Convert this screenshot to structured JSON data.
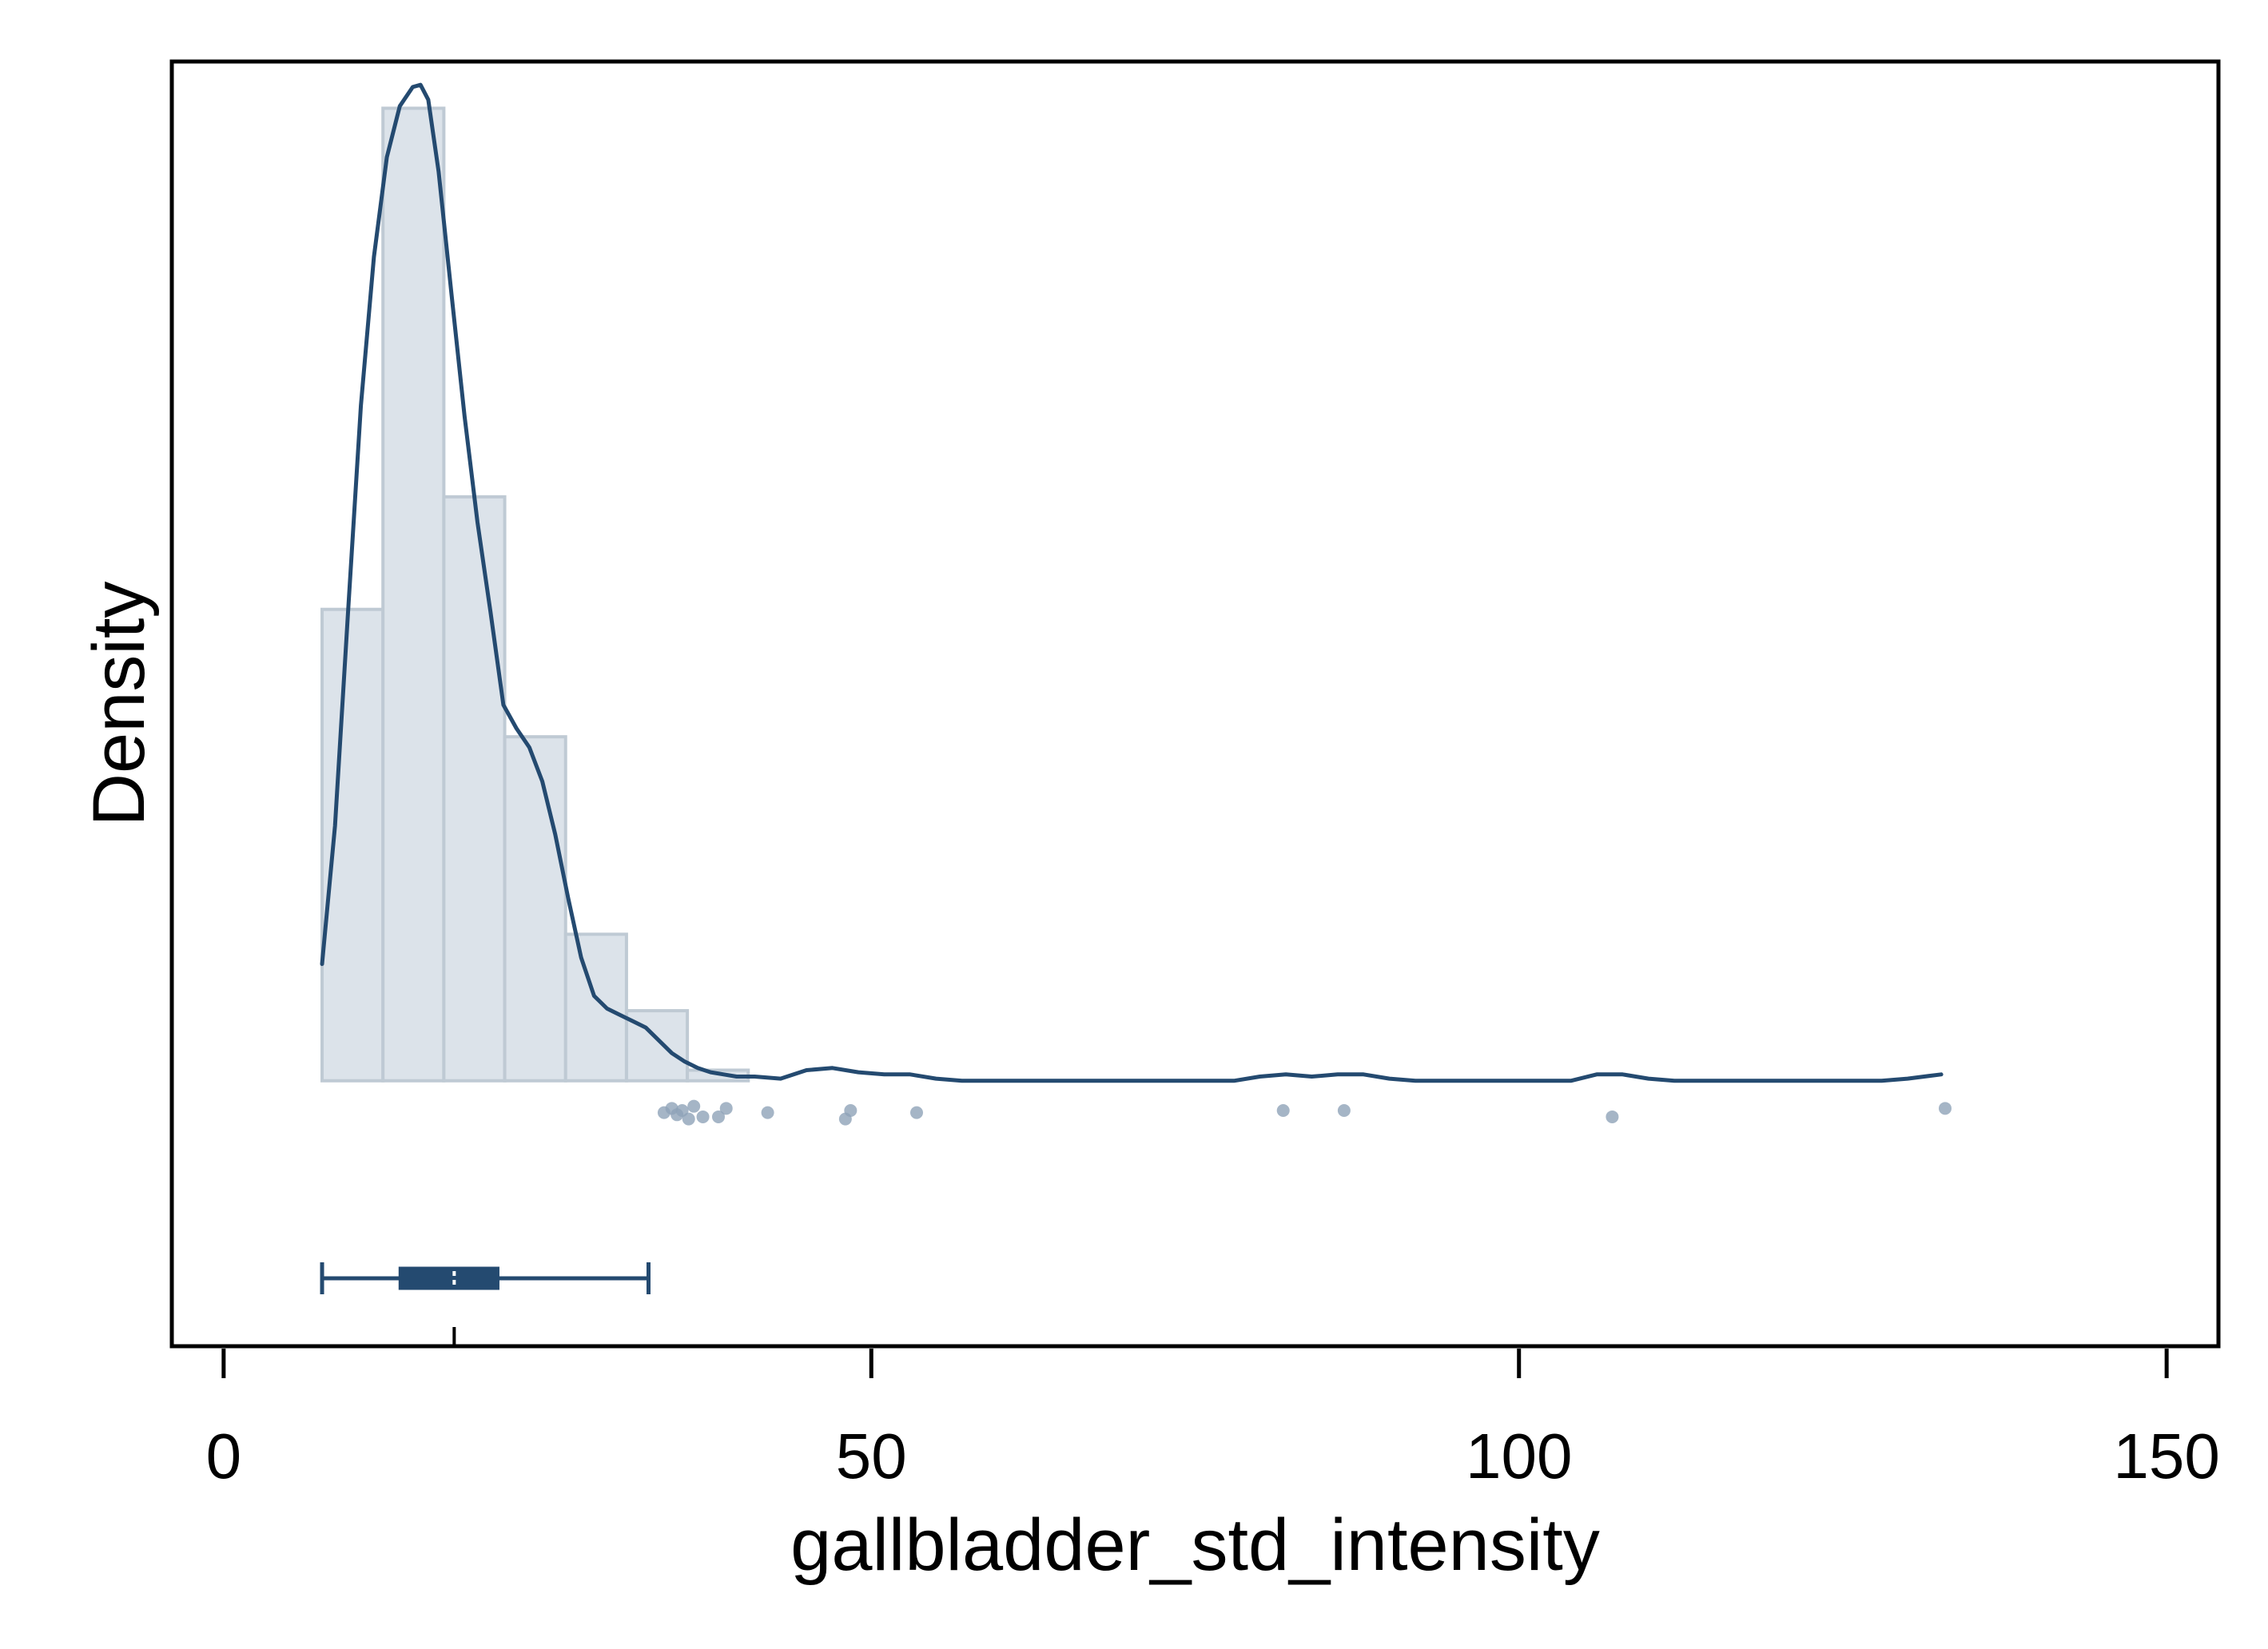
{
  "chart_data": {
    "type": "bar",
    "xlabel": "gallbladder_std_intensity",
    "ylabel": "Density",
    "xlim": [
      -4,
      154
    ],
    "ylim": [
      -0.0125,
      0.048
    ],
    "x_ticks": [
      0,
      50,
      100,
      150
    ],
    "x_tick_labels": [
      "0",
      "50",
      "100",
      "150"
    ],
    "grid": false,
    "colors": {
      "bar_fill": "#dce3ea",
      "bar_stroke": "#bfcad4",
      "kde_line": "#244a70",
      "box": "#244a70",
      "outlier_points": "#8ea3b8",
      "frame": "#000000"
    },
    "histogram": {
      "bin_edges": [
        7.6,
        12.3,
        17.0,
        21.7,
        26.4,
        31.1,
        35.8,
        40.5
      ],
      "density": [
        0.0222,
        0.0458,
        0.0275,
        0.0162,
        0.0069,
        0.0033,
        0.0005
      ]
    },
    "kde": {
      "x": [
        7.6,
        8.6,
        9.6,
        10.6,
        11.6,
        12.6,
        13.6,
        14.6,
        15.2,
        15.8,
        16.6,
        17.6,
        18.6,
        19.6,
        20.6,
        21.6,
        22.6,
        23.6,
        24.6,
        25.6,
        26.6,
        27.6,
        28.6,
        29.6,
        30.6,
        31.6,
        32.6,
        33.6,
        34.6,
        35.6,
        36.6,
        37.6,
        38.6,
        39.6,
        41,
        43,
        45,
        47,
        49,
        51,
        53,
        55,
        57,
        60,
        70,
        78,
        80,
        82,
        84,
        86,
        88,
        90,
        92,
        95,
        100,
        104,
        106,
        108,
        110,
        112,
        115,
        120,
        125,
        128,
        130,
        132.6
      ],
      "y": [
        0.0055,
        0.012,
        0.022,
        0.0318,
        0.0388,
        0.0435,
        0.0459,
        0.0468,
        0.0469,
        0.0462,
        0.0428,
        0.037,
        0.0313,
        0.0263,
        0.0221,
        0.0177,
        0.0166,
        0.0157,
        0.0141,
        0.0116,
        0.0086,
        0.0058,
        0.004,
        0.0034,
        0.0031,
        0.0028,
        0.0025,
        0.0019,
        0.0013,
        0.0009,
        0.0006,
        0.0004,
        0.0003,
        0.0002,
        0.0002,
        0.0001,
        0.0005,
        0.0006,
        0.0004,
        0.0003,
        0.0003,
        0.0001,
        0.0,
        0.0,
        0.0,
        0.0,
        0.0002,
        0.0003,
        0.0002,
        0.0003,
        0.0003,
        0.0001,
        0.0,
        0.0,
        0.0,
        0.0,
        0.0003,
        0.0003,
        0.0001,
        0.0,
        0.0,
        0.0,
        0.0,
        0.0,
        0.0001,
        0.0003
      ]
    },
    "boxplot": {
      "whisker_low": 7.6,
      "q1": 13.6,
      "median": 17.8,
      "q3": 21.2,
      "whisker_high": 32.8
    },
    "outliers": [
      {
        "x": 34.0,
        "y": -0.0015
      },
      {
        "x": 34.6,
        "y": -0.0013
      },
      {
        "x": 35.0,
        "y": -0.0016
      },
      {
        "x": 35.4,
        "y": -0.0014
      },
      {
        "x": 35.9,
        "y": -0.0018
      },
      {
        "x": 36.3,
        "y": -0.0012
      },
      {
        "x": 37.0,
        "y": -0.0017
      },
      {
        "x": 38.2,
        "y": -0.0017
      },
      {
        "x": 38.8,
        "y": -0.0013
      },
      {
        "x": 42.0,
        "y": -0.0015
      },
      {
        "x": 48.0,
        "y": -0.0018
      },
      {
        "x": 48.4,
        "y": -0.0014
      },
      {
        "x": 53.5,
        "y": -0.0015
      },
      {
        "x": 81.8,
        "y": -0.0014
      },
      {
        "x": 86.5,
        "y": -0.0014
      },
      {
        "x": 107.2,
        "y": -0.0017
      },
      {
        "x": 132.9,
        "y": -0.0013
      }
    ]
  }
}
